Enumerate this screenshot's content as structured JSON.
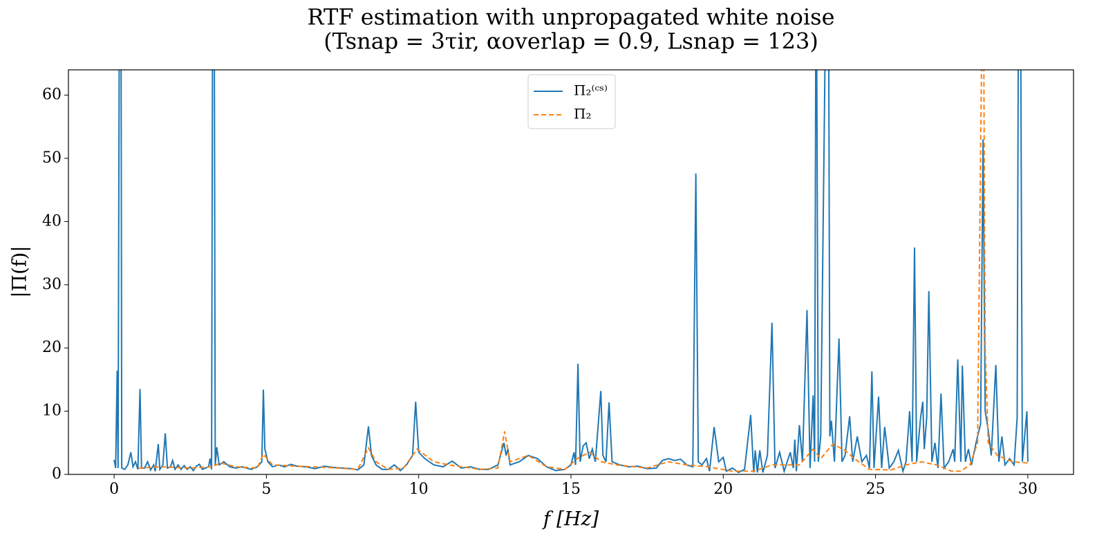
{
  "chart_data": {
    "type": "line",
    "title": "RTF estimation with unpropagated white noise",
    "subtitle": "(Tsnap = 3τir,   αoverlap = 0.9,   Lsnap = 123)",
    "xlabel": "f [Hz]",
    "ylabel": "|Π(f)|",
    "xlim": [
      -1.5,
      31.5
    ],
    "ylim": [
      0,
      64
    ],
    "xticks": [
      0,
      5,
      10,
      15,
      20,
      25,
      30
    ],
    "yticks": [
      0,
      10,
      20,
      30,
      40,
      50,
      60
    ],
    "legend": "upper center",
    "series": [
      {
        "name": "Π₂⁽ᶜˢ⁾",
        "color": "#1f77b4",
        "dash": "solid",
        "x": [
          0,
          0.05,
          0.1,
          0.13,
          0.18,
          0.22,
          0.25,
          0.35,
          0.45,
          0.55,
          0.62,
          0.7,
          0.78,
          0.85,
          0.9,
          1.0,
          1.1,
          1.2,
          1.3,
          1.35,
          1.45,
          1.5,
          1.6,
          1.68,
          1.75,
          1.85,
          1.92,
          2.0,
          2.1,
          2.2,
          2.3,
          2.4,
          2.5,
          2.6,
          2.7,
          2.8,
          2.9,
          3.0,
          3.1,
          3.15,
          3.2,
          3.24,
          3.28,
          3.32,
          3.37,
          3.45,
          3.6,
          3.8,
          4.0,
          4.2,
          4.5,
          4.7,
          4.85,
          4.9,
          4.95,
          5.05,
          5.2,
          5.4,
          5.6,
          5.8,
          6.0,
          6.3,
          6.6,
          6.9,
          7.2,
          7.5,
          7.8,
          8.0,
          8.2,
          8.35,
          8.45,
          8.6,
          8.8,
          9.0,
          9.2,
          9.4,
          9.6,
          9.8,
          9.9,
          10.0,
          10.2,
          10.5,
          10.8,
          11.1,
          11.4,
          11.7,
          12.0,
          12.3,
          12.6,
          12.8,
          12.87,
          12.93,
          13.0,
          13.3,
          13.6,
          13.9,
          14.2,
          14.5,
          14.8,
          15.0,
          15.1,
          15.15,
          15.23,
          15.3,
          15.4,
          15.5,
          15.6,
          15.7,
          15.8,
          15.98,
          16.05,
          16.15,
          16.25,
          16.35,
          16.6,
          16.9,
          17.2,
          17.5,
          17.8,
          18.0,
          18.2,
          18.4,
          18.6,
          18.8,
          19.0,
          19.1,
          19.18,
          19.3,
          19.45,
          19.55,
          19.7,
          19.85,
          20.0,
          20.1,
          20.3,
          20.5,
          20.7,
          20.9,
          21.0,
          21.05,
          21.12,
          21.2,
          21.3,
          21.45,
          21.6,
          21.7,
          21.85,
          22.0,
          22.2,
          22.3,
          22.35,
          22.4,
          22.5,
          22.6,
          22.75,
          22.85,
          22.95,
          23.0,
          23.05,
          23.12,
          23.2,
          23.4,
          23.45,
          23.5,
          23.55,
          23.65,
          23.8,
          23.9,
          24.0,
          24.15,
          24.25,
          24.4,
          24.55,
          24.7,
          24.8,
          24.88,
          24.95,
          25.1,
          25.2,
          25.3,
          25.45,
          25.6,
          25.75,
          25.9,
          26.0,
          26.12,
          26.2,
          26.28,
          26.35,
          26.48,
          26.55,
          26.6,
          26.68,
          26.75,
          26.85,
          26.95,
          27.05,
          27.15,
          27.25,
          27.4,
          27.55,
          27.6,
          27.7,
          27.8,
          27.85,
          27.95,
          28.05,
          28.15,
          28.3,
          28.45,
          28.53,
          28.6,
          28.7,
          28.8,
          28.95,
          29.05,
          29.15,
          29.25,
          29.4,
          29.55,
          29.65,
          29.7,
          29.75,
          29.82,
          29.97,
          30.0
        ],
        "values": [
          2.3,
          1,
          16.4,
          1,
          90,
          95,
          1,
          0.8,
          1.5,
          3.5,
          1.2,
          2,
          0.8,
          13.5,
          1,
          1,
          2,
          0.7,
          1.5,
          0.5,
          4.8,
          0.8,
          1.5,
          6.5,
          1,
          1.2,
          2.2,
          0.8,
          1.5,
          0.8,
          1.4,
          0.8,
          1.2,
          0.6,
          1.3,
          1.6,
          0.8,
          1,
          1.2,
          2.5,
          0.8,
          90,
          90,
          1.5,
          4.3,
          1.5,
          2,
          1.2,
          1,
          1.2,
          0.8,
          1.2,
          2,
          13.4,
          4,
          2,
          1.2,
          1.5,
          1.2,
          1.6,
          1.3,
          1.2,
          0.9,
          1.3,
          1.1,
          1.0,
          0.9,
          0.7,
          1.5,
          7.6,
          3,
          1.5,
          0.8,
          0.8,
          1.5,
          0.6,
          1.5,
          3,
          11.5,
          3.5,
          2.5,
          1.5,
          1.2,
          2.1,
          1.0,
          1.2,
          0.8,
          0.8,
          1.5,
          5,
          3,
          4,
          1.5,
          2,
          3,
          2.5,
          1.2,
          0.6,
          0.8,
          1.5,
          3.5,
          1.5,
          17.5,
          2,
          4.5,
          5,
          2.5,
          4,
          2,
          13.2,
          3,
          2,
          11.4,
          2,
          1.5,
          1.2,
          1.3,
          0.9,
          1,
          2.2,
          2.5,
          2.2,
          2.4,
          1.5,
          1.2,
          47.6,
          2,
          1.5,
          2.5,
          0.5,
          7.5,
          2,
          2.7,
          0.5,
          1,
          0.3,
          0.8,
          9.4,
          0.3,
          3.8,
          0.3,
          3.8,
          0.3,
          3,
          24,
          1,
          3.5,
          0.5,
          3.5,
          1,
          5.5,
          0.5,
          7.8,
          2,
          26,
          1,
          12.5,
          2,
          90,
          2,
          6,
          90,
          90,
          6,
          8.5,
          2,
          21.5,
          2,
          3,
          9.2,
          2,
          6,
          2,
          3,
          1,
          16.3,
          1,
          12.3,
          1,
          7.5,
          1,
          2,
          3.8,
          0.5,
          2,
          10,
          2,
          35.9,
          2,
          9,
          11.5,
          4,
          9,
          29,
          2,
          5,
          1,
          12.8,
          1,
          2,
          4,
          2,
          18.2,
          2,
          17.2,
          2,
          4,
          1.5,
          5,
          8,
          53,
          10,
          7,
          3,
          17.3,
          2,
          6,
          1.5,
          2.5,
          1.5,
          9,
          90,
          90,
          2,
          10,
          2
        ]
      },
      {
        "name": "Π₂",
        "color": "#ff7f0e",
        "dash": "dashed",
        "x": [
          0.8,
          1.5,
          2.5,
          3.2,
          3.5,
          4.0,
          4.7,
          4.9,
          5.2,
          6,
          7,
          8,
          8.35,
          8.6,
          9,
          9.5,
          9.95,
          10.5,
          11,
          12,
          12.6,
          12.82,
          13.0,
          13.6,
          14.2,
          14.8,
          15.2,
          15.6,
          16,
          16.5,
          17.5,
          18.2,
          18.8,
          19.5,
          20.3,
          21,
          21.6,
          22,
          22.5,
          22.95,
          23.2,
          23.6,
          24,
          24.3,
          24.8,
          25.5,
          26,
          26.5,
          27,
          27.5,
          27.8,
          28.1,
          28.35,
          28.48,
          28.53,
          28.6,
          28.7,
          29,
          29.5,
          30
        ],
        "values": [
          1,
          1.2,
          1,
          1.2,
          1.8,
          1.2,
          1,
          3.2,
          1.5,
          1.3,
          1.1,
          0.8,
          4.2,
          2,
          0.8,
          1,
          4,
          2,
          1.5,
          0.8,
          1,
          6.8,
          2,
          3,
          1.2,
          0.8,
          2.5,
          3.5,
          2,
          1.5,
          1,
          2,
          1.5,
          1.2,
          0.5,
          0.5,
          1.5,
          1.5,
          1.5,
          4,
          2.5,
          4.8,
          3.8,
          2.5,
          0.8,
          0.7,
          1.5,
          2,
          1.5,
          0.5,
          0.5,
          1.5,
          5,
          65,
          90,
          20,
          5,
          3,
          2,
          1.8
        ]
      }
    ]
  }
}
